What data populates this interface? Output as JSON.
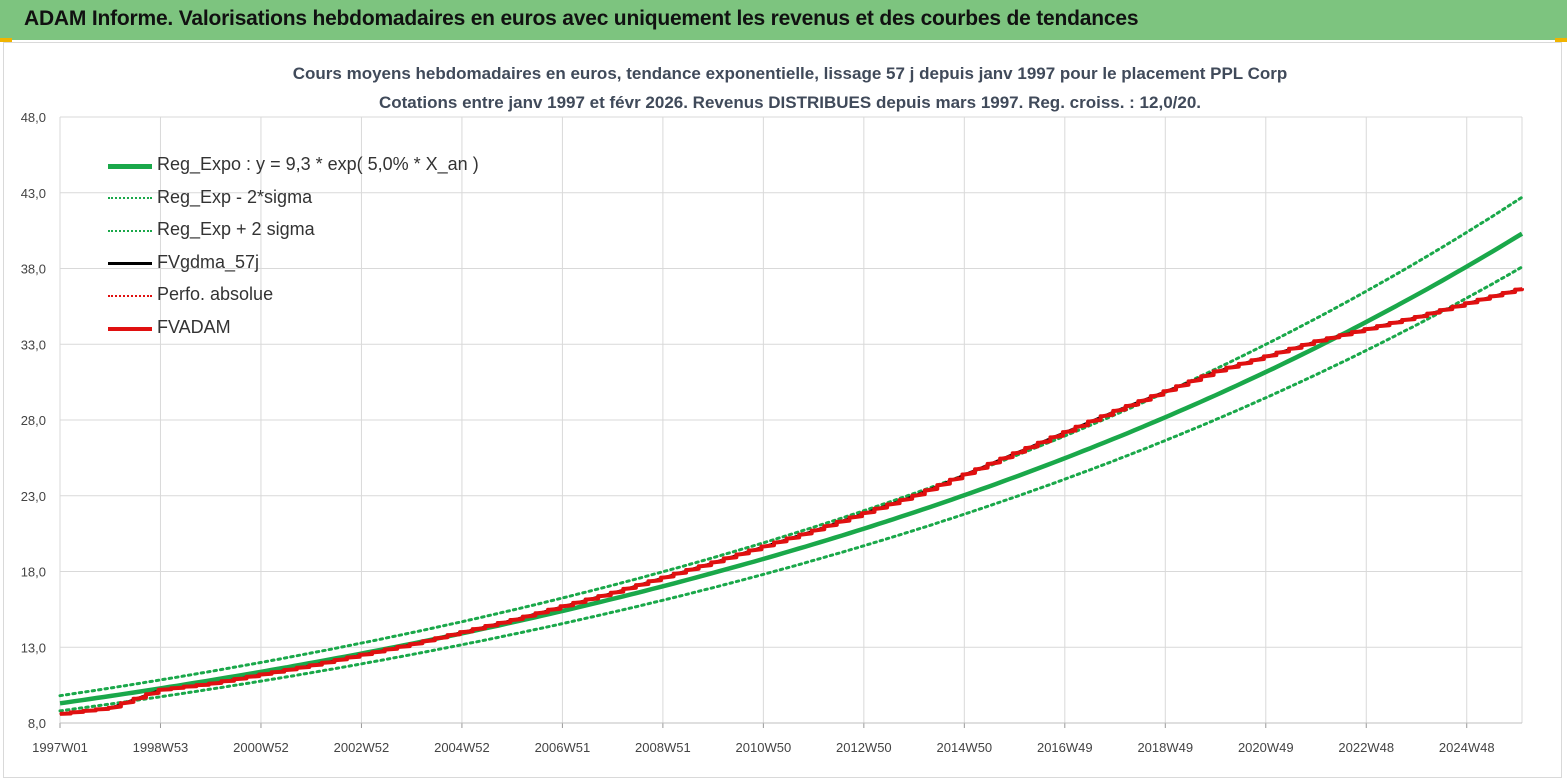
{
  "header": {
    "title": "ADAM Informe. Valorisations hebdomadaires en euros avec uniquement les revenus et des courbes de tendances"
  },
  "colors": {
    "header_bg": "#7dc47f",
    "green": "#1aa84a",
    "red": "#e01010",
    "black": "#000000",
    "grid": "#d9d9d9"
  },
  "chart_data": {
    "type": "line",
    "title_line1": "Cours moyens hebdomadaires en euros, tendance exponentielle, lissage 57 j depuis janv 1997 pour le placement PPL Corp",
    "title_line2": "Cotations entre janv 1997 et févr 2026. Revenus DISTRIBUES depuis mars 1997. Reg. croiss. : 12,0/20.",
    "xlabel": "",
    "ylabel": "",
    "ylim": [
      8.0,
      48.0
    ],
    "y_ticks": [
      "8,0",
      "13,0",
      "18,0",
      "23,0",
      "28,0",
      "33,0",
      "38,0",
      "43,0",
      "48,0"
    ],
    "x_range_years": [
      1997.0,
      2026.1
    ],
    "x_ticks": [
      {
        "label": "1997W01",
        "year": 1997.0
      },
      {
        "label": "1998W53",
        "year": 1999.0
      },
      {
        "label": "2000W52",
        "year": 2001.0
      },
      {
        "label": "2002W52",
        "year": 2003.0
      },
      {
        "label": "2004W52",
        "year": 2005.0
      },
      {
        "label": "2006W51",
        "year": 2007.0
      },
      {
        "label": "2008W51",
        "year": 2009.0
      },
      {
        "label": "2010W50",
        "year": 2011.0
      },
      {
        "label": "2012W50",
        "year": 2013.0
      },
      {
        "label": "2014W50",
        "year": 2015.0
      },
      {
        "label": "2016W49",
        "year": 2017.0
      },
      {
        "label": "2018W49",
        "year": 2019.0
      },
      {
        "label": "2020W49",
        "year": 2021.0
      },
      {
        "label": "2022W48",
        "year": 2023.0
      },
      {
        "label": "2024W48",
        "year": 2025.0
      }
    ],
    "grid": true,
    "legend_position": "top-left",
    "series": [
      {
        "name": "Reg_Expo : y = 9,3 * exp( 5,0% *  X_an )",
        "style": "solid-thick",
        "color": "#1aa84a",
        "x": [
          1997.0,
          2000.0,
          2003.0,
          2006.0,
          2009.0,
          2012.0,
          2015.0,
          2018.0,
          2021.0,
          2024.0,
          2026.1
        ],
        "y": [
          9.3,
          10.8,
          12.6,
          14.6,
          16.9,
          19.7,
          22.8,
          26.6,
          30.9,
          35.8,
          40.3
        ]
      },
      {
        "name": "Reg_Exp - 2*sigma",
        "style": "dotted",
        "color": "#1aa84a",
        "x": [
          1997.0,
          2000.0,
          2003.0,
          2006.0,
          2009.0,
          2012.0,
          2015.0,
          2018.0,
          2021.0,
          2024.0,
          2026.1
        ],
        "y": [
          8.8,
          10.2,
          11.8,
          13.7,
          16.0,
          18.6,
          21.7,
          25.2,
          29.3,
          34.1,
          38.1
        ]
      },
      {
        "name": "Reg_Exp + 2 sigma",
        "style": "dotted",
        "color": "#1aa84a",
        "x": [
          1997.0,
          2000.0,
          2003.0,
          2006.0,
          2009.0,
          2012.0,
          2015.0,
          2018.0,
          2021.0,
          2024.0,
          2026.1
        ],
        "y": [
          9.8,
          11.4,
          13.3,
          15.4,
          17.9,
          20.8,
          24.2,
          28.1,
          32.7,
          38.1,
          42.7
        ]
      },
      {
        "name": "FVgdma_57j",
        "style": "solid",
        "color": "#000000",
        "x": [
          1997.0,
          1998.0,
          1999.0,
          2000.0,
          2002.0,
          2004.0,
          2006.0,
          2008.0,
          2010.0,
          2012.0,
          2014.0,
          2016.0,
          2018.0,
          2020.0,
          2022.0,
          2024.0,
          2026.1
        ],
        "y": [
          8.6,
          9.0,
          10.2,
          10.6,
          11.8,
          13.2,
          14.8,
          16.6,
          18.6,
          20.7,
          23.0,
          25.8,
          28.6,
          31.2,
          33.2,
          34.8,
          36.7
        ]
      },
      {
        "name": "Perfo. absolue",
        "style": "dotted-thin",
        "color": "#e01010",
        "x": [
          1997.0,
          1998.0,
          1999.0,
          2000.0,
          2002.0,
          2004.0,
          2006.0,
          2008.0,
          2010.0,
          2012.0,
          2014.0,
          2016.0,
          2018.0,
          2020.0,
          2022.0,
          2024.0,
          2026.1
        ],
        "y": [
          8.6,
          9.0,
          10.2,
          10.6,
          11.8,
          13.2,
          14.8,
          16.6,
          18.6,
          20.7,
          23.0,
          25.8,
          28.6,
          31.2,
          33.2,
          34.8,
          36.7
        ]
      },
      {
        "name": "FVADAM",
        "style": "steps-thick",
        "color": "#e01010",
        "x": [
          1997.0,
          1998.0,
          1999.0,
          2000.0,
          2002.0,
          2004.0,
          2006.0,
          2008.0,
          2010.0,
          2012.0,
          2014.0,
          2016.0,
          2018.0,
          2020.0,
          2022.0,
          2024.0,
          2026.1
        ],
        "y": [
          8.6,
          9.0,
          10.2,
          10.6,
          11.8,
          13.2,
          14.8,
          16.6,
          18.6,
          20.7,
          23.0,
          25.8,
          28.6,
          31.2,
          33.2,
          34.8,
          36.7
        ]
      }
    ]
  }
}
